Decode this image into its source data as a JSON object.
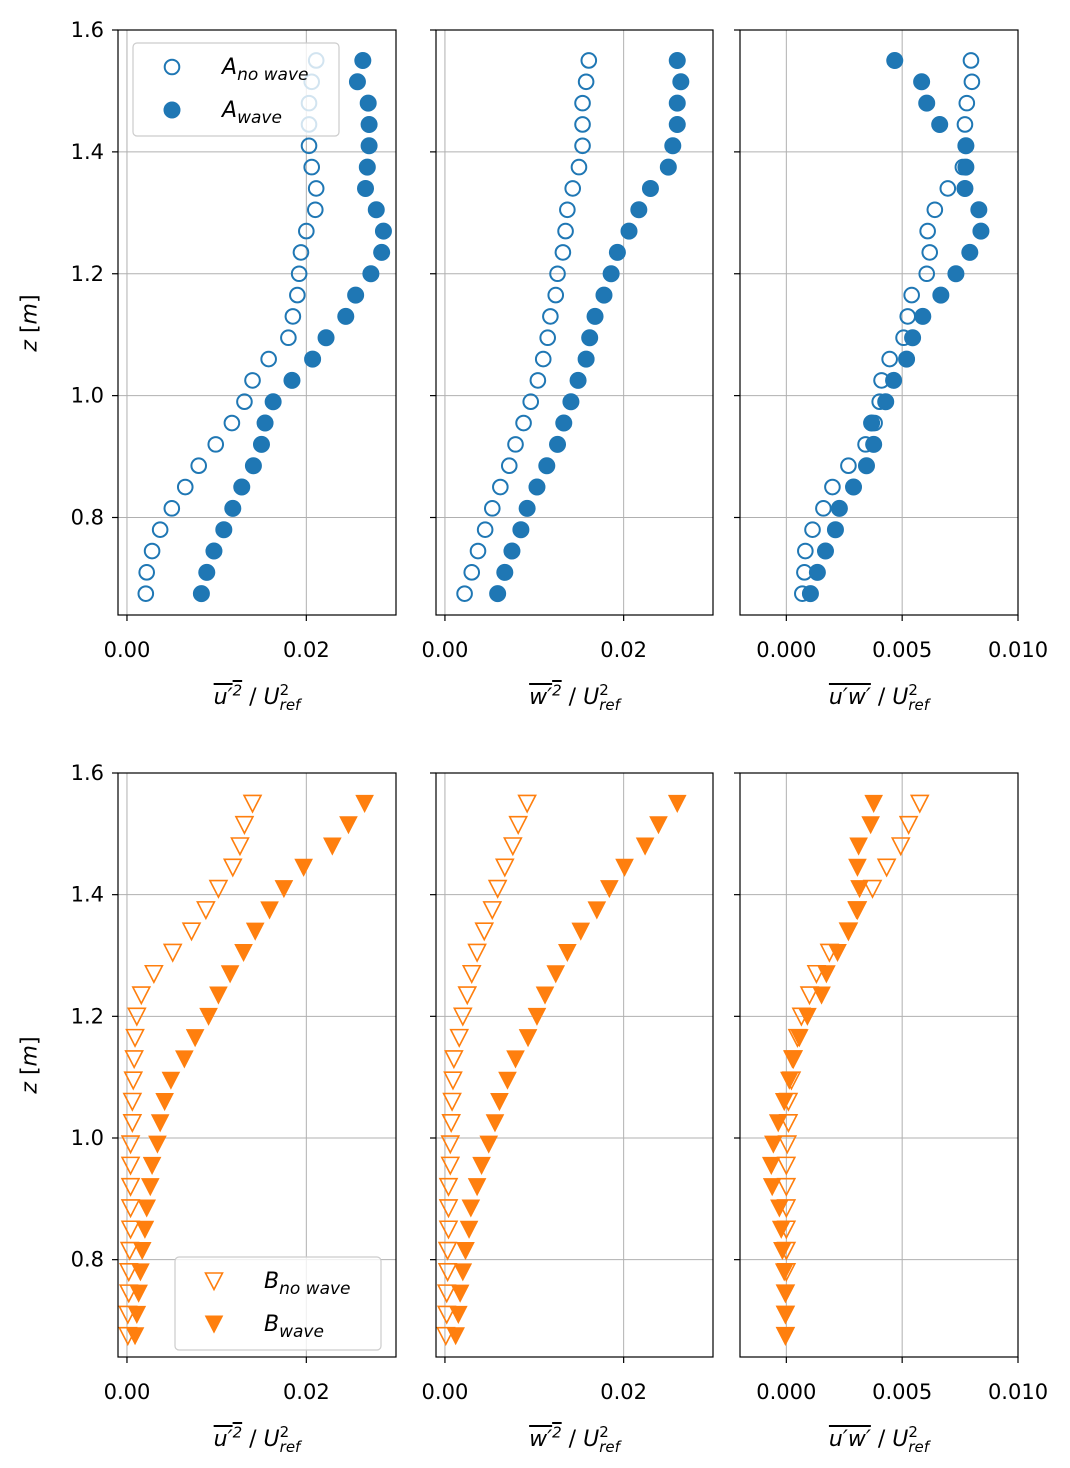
{
  "chart_data": {
    "type": "scatter",
    "layout": "2 rows x 3 columns",
    "colors": {
      "A": "#1f77b4",
      "B": "#ff7f0e",
      "grid": "#b0b0b0"
    },
    "z": [
      0.675,
      0.71,
      0.745,
      0.78,
      0.815,
      0.85,
      0.885,
      0.92,
      0.955,
      0.99,
      1.025,
      1.06,
      1.095,
      1.13,
      1.165,
      1.2,
      1.235,
      1.27,
      1.305,
      1.34,
      1.375,
      1.41,
      1.445,
      1.48,
      1.515,
      1.55
    ],
    "ylabel": {
      "var": "z",
      "unit": "m"
    },
    "ylim": [
      0.64,
      1.6
    ],
    "yticks": [
      0.8,
      1.0,
      1.2,
      1.4,
      1.6
    ],
    "yticklabels": [
      "0.8",
      "1.0",
      "1.2",
      "1.4",
      "1.6"
    ],
    "panels": [
      {
        "row": 0,
        "col": 0,
        "xlim": [
          -0.001,
          0.03
        ],
        "xticks": [
          0,
          0.02
        ],
        "xticklabels": [
          "0.00",
          "0.02"
        ],
        "xlabel": {
          "num": "u′",
          "num_sup": "2",
          "sep": " / ",
          "den": "U",
          "den_sup": "2",
          "den_sub": "ref"
        },
        "legend": {
          "placement": "upper-left",
          "entries": [
            {
              "base": "A",
              "sub": "no wave",
              "series": 0
            },
            {
              "base": "A",
              "sub": "wave",
              "series": 1
            }
          ]
        },
        "series": [
          {
            "name": "A no wave",
            "marker": "circle-open",
            "color": "#1f77b4",
            "values": [
              0.0021,
              0.0022,
              0.0028,
              0.0037,
              0.005,
              0.0065,
              0.008,
              0.0099,
              0.0117,
              0.0131,
              0.014,
              0.0158,
              0.018,
              0.0185,
              0.019,
              0.0192,
              0.0194,
              0.02,
              0.021,
              0.0211,
              0.0206,
              0.0203,
              0.0203,
              0.0203,
              0.0206,
              0.0211
            ]
          },
          {
            "name": "A wave",
            "marker": "circle-filled",
            "color": "#1f77b4",
            "values": [
              0.0083,
              0.0089,
              0.0097,
              0.0108,
              0.0118,
              0.0128,
              0.0141,
              0.015,
              0.0154,
              0.0163,
              0.0184,
              0.0207,
              0.0222,
              0.0244,
              0.0255,
              0.0272,
              0.0284,
              0.0286,
              0.0278,
              0.0266,
              0.0268,
              0.027,
              0.027,
              0.0269,
              0.0257,
              0.0263
            ]
          }
        ]
      },
      {
        "row": 0,
        "col": 1,
        "xlim": [
          -0.001,
          0.03
        ],
        "xticks": [
          0,
          0.02
        ],
        "xticklabels": [
          "0.00",
          "0.02"
        ],
        "xlabel": {
          "num": "w′",
          "num_sup": "2",
          "sep": " / ",
          "den": "U",
          "den_sup": "2",
          "den_sub": "ref"
        },
        "series": [
          {
            "name": "A no wave",
            "marker": "circle-open",
            "color": "#1f77b4",
            "values": [
              0.0022,
              0.003,
              0.0037,
              0.0045,
              0.0053,
              0.0062,
              0.0072,
              0.0079,
              0.0088,
              0.0096,
              0.0104,
              0.011,
              0.0115,
              0.0118,
              0.0124,
              0.0126,
              0.0132,
              0.0135,
              0.0137,
              0.0143,
              0.015,
              0.0154,
              0.0154,
              0.0154,
              0.0158,
              0.0161
            ]
          },
          {
            "name": "A wave",
            "marker": "circle-filled",
            "color": "#1f77b4",
            "values": [
              0.0059,
              0.0067,
              0.0075,
              0.0085,
              0.0092,
              0.0103,
              0.0114,
              0.0126,
              0.0133,
              0.0141,
              0.0149,
              0.0158,
              0.0162,
              0.0168,
              0.0178,
              0.0186,
              0.0193,
              0.0206,
              0.0217,
              0.023,
              0.025,
              0.0255,
              0.026,
              0.026,
              0.0264,
              0.026
            ]
          }
        ]
      },
      {
        "row": 0,
        "col": 2,
        "xlim": [
          -0.002,
          0.01
        ],
        "xticks": [
          0,
          0.005,
          0.01
        ],
        "xticklabels": [
          "0.000",
          "0.005",
          "0.010"
        ],
        "xlabel": {
          "num": "u′w′",
          "num_sup": "",
          "sep": " / ",
          "den": "U",
          "den_sup": "2",
          "den_sub": "ref"
        },
        "series": [
          {
            "name": "A no wave",
            "marker": "circle-open",
            "color": "#1f77b4",
            "values": [
              0.00069,
              0.00078,
              0.00082,
              0.00113,
              0.0016,
              0.00199,
              0.00268,
              0.00342,
              0.00381,
              0.00403,
              0.00411,
              0.00446,
              0.00506,
              0.00524,
              0.00541,
              0.00606,
              0.00619,
              0.0061,
              0.00641,
              0.00697,
              0.00762,
              0.00775,
              0.00771,
              0.00779,
              0.00801,
              0.00797
            ]
          },
          {
            "name": "A wave",
            "marker": "circle-filled",
            "color": "#1f77b4",
            "values": [
              0.00104,
              0.00134,
              0.00169,
              0.00212,
              0.00229,
              0.0029,
              0.00346,
              0.00377,
              0.00368,
              0.00429,
              0.00463,
              0.00519,
              0.00545,
              0.00589,
              0.00667,
              0.00732,
              0.00792,
              0.0084,
              0.00831,
              0.00771,
              0.00775,
              0.00775,
              0.00662,
              0.00606,
              0.00584,
              0.00468
            ]
          }
        ]
      },
      {
        "row": 1,
        "col": 0,
        "xlim": [
          -0.001,
          0.03
        ],
        "xticks": [
          0,
          0.02
        ],
        "xticklabels": [
          "0.00",
          "0.02"
        ],
        "xlabel": {
          "num": "u′",
          "num_sup": "2",
          "sep": " / ",
          "den": "U",
          "den_sup": "2",
          "den_sub": "ref"
        },
        "legend": {
          "placement": "lower-right",
          "entries": [
            {
              "base": "B",
              "sub": "no wave",
              "series": 0
            },
            {
              "base": "B",
              "sub": "wave",
              "series": 1
            }
          ]
        },
        "series": [
          {
            "name": "B no wave",
            "marker": "triangle-down-open",
            "color": "#ff7f0e",
            "values": [
              0.0001,
              0.0001,
              0.0002,
              0.0002,
              0.0003,
              0.0004,
              0.0004,
              0.0004,
              0.0004,
              0.0004,
              0.0006,
              0.0006,
              0.0007,
              0.0008,
              0.0009,
              0.0011,
              0.0016,
              0.003,
              0.0051,
              0.0072,
              0.0088,
              0.0102,
              0.0118,
              0.0126,
              0.0131,
              0.014
            ]
          },
          {
            "name": "B wave",
            "marker": "triangle-down-filled",
            "color": "#ff7f0e",
            "values": [
              0.0009,
              0.0011,
              0.0013,
              0.0015,
              0.0017,
              0.002,
              0.0022,
              0.0026,
              0.0028,
              0.0034,
              0.0037,
              0.0042,
              0.0049,
              0.0064,
              0.0076,
              0.0091,
              0.0102,
              0.0115,
              0.013,
              0.0143,
              0.0159,
              0.0175,
              0.0197,
              0.0229,
              0.0247,
              0.0265
            ]
          }
        ]
      },
      {
        "row": 1,
        "col": 1,
        "xlim": [
          -0.001,
          0.03
        ],
        "xticks": [
          0,
          0.02
        ],
        "xticklabels": [
          "0.00",
          "0.02"
        ],
        "xlabel": {
          "num": "w′",
          "num_sup": "2",
          "sep": " / ",
          "den": "U",
          "den_sup": "2",
          "den_sub": "ref"
        },
        "series": [
          {
            "name": "B no wave",
            "marker": "triangle-down-open",
            "color": "#ff7f0e",
            "values": [
              0.0001,
              0.0002,
              0.0002,
              0.0003,
              0.0003,
              0.0004,
              0.0004,
              0.0004,
              0.0006,
              0.0006,
              0.0007,
              0.0008,
              0.0009,
              0.001,
              0.0016,
              0.002,
              0.0025,
              0.003,
              0.0036,
              0.0044,
              0.0053,
              0.0059,
              0.0067,
              0.0076,
              0.0082,
              0.0092
            ]
          },
          {
            "name": "B wave",
            "marker": "triangle-down-filled",
            "color": "#ff7f0e",
            "values": [
              0.0012,
              0.0015,
              0.0017,
              0.002,
              0.0023,
              0.0027,
              0.0029,
              0.0036,
              0.0041,
              0.0049,
              0.0056,
              0.0061,
              0.007,
              0.0079,
              0.0093,
              0.0103,
              0.0112,
              0.0124,
              0.0137,
              0.0152,
              0.017,
              0.0184,
              0.0201,
              0.0224,
              0.0239,
              0.026
            ]
          }
        ]
      },
      {
        "row": 1,
        "col": 2,
        "xlim": [
          -0.002,
          0.01
        ],
        "xticks": [
          0,
          0.005,
          0.01
        ],
        "xticklabels": [
          "0.000",
          "0.005",
          "0.010"
        ],
        "xlabel": {
          "num": "u′w′",
          "num_sup": "",
          "sep": " / ",
          "den": "U",
          "den_sup": "2",
          "den_sub": "ref"
        },
        "series": [
          {
            "name": "B no wave",
            "marker": "triangle-down-open",
            "color": "#ff7f0e",
            "values": [
              -4e-05,
              -4e-05,
              -4e-05,
              0,
              0,
              0,
              0,
              0,
              0,
              4e-05,
              9e-05,
              9e-05,
              0.00022,
              0.0003,
              0.00048,
              0.00065,
              0.001,
              0.0013,
              0.00186,
              0.00268,
              0.00307,
              0.00372,
              0.00433,
              0.00494,
              0.00528,
              0.00576
            ]
          },
          {
            "name": "B wave",
            "marker": "triangle-down-filled",
            "color": "#ff7f0e",
            "values": [
              -4e-05,
              -4e-05,
              -4e-05,
              -9e-05,
              -0.00017,
              -0.00022,
              -0.0003,
              -0.00061,
              -0.00065,
              -0.00056,
              -0.00035,
              -9e-05,
              0.00013,
              0.00026,
              0.00056,
              0.00091,
              0.00152,
              0.00173,
              0.00221,
              0.00268,
              0.00303,
              0.00316,
              0.00307,
              0.00312,
              0.00364,
              0.00377
            ]
          }
        ]
      }
    ]
  }
}
